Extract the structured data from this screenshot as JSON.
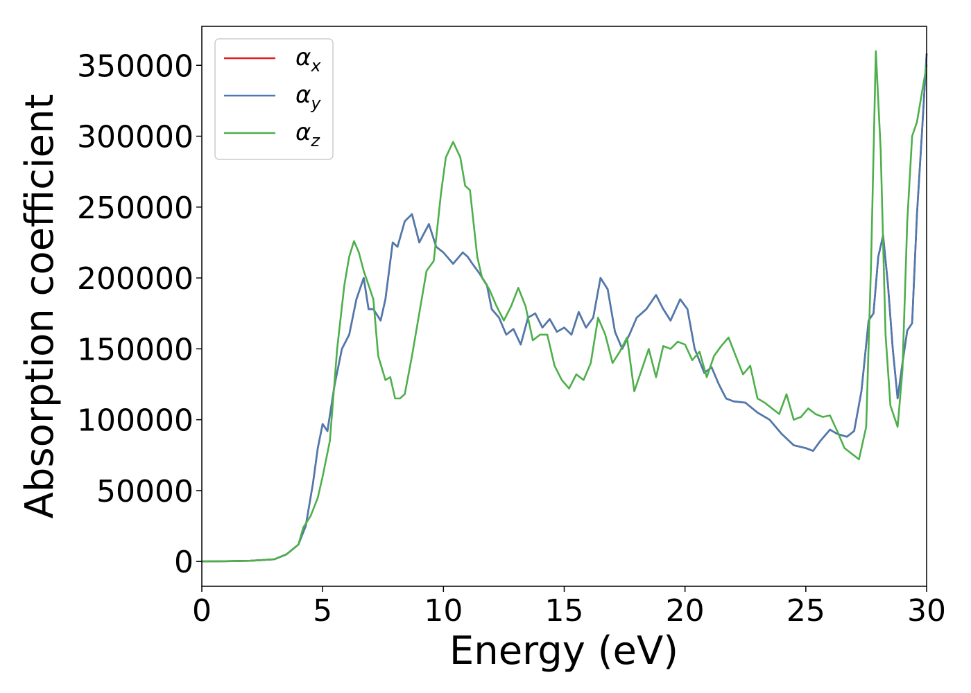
{
  "chart_data": {
    "type": "line",
    "xlabel": "Energy (eV)",
    "ylabel": "Absorption coefficient",
    "xlim": [
      0,
      30
    ],
    "ylim": [
      -17500,
      377500
    ],
    "xticks": [
      "0",
      "5",
      "10",
      "15",
      "20",
      "25",
      "30"
    ],
    "yticks": [
      "0",
      "50000",
      "100000",
      "150000",
      "200000",
      "250000",
      "300000",
      "350000"
    ],
    "grid": false,
    "legend_position": "top-left",
    "series": [
      {
        "name": "α_x",
        "symbol": "α",
        "subscript": "x",
        "color": "#e41a1c",
        "x": [
          0,
          1,
          2,
          3,
          3.5,
          4,
          4.3,
          4.6,
          4.8,
          5,
          5.2,
          5.5,
          5.8,
          6.1,
          6.4,
          6.7,
          6.9,
          7.1,
          7.4,
          7.6,
          7.9,
          8.1,
          8.4,
          8.7,
          9.0,
          9.4,
          9.7,
          10.0,
          10.4,
          10.8,
          11.0,
          11.2,
          11.5,
          11.8,
          12.0,
          12.3,
          12.6,
          12.9,
          13.2,
          13.5,
          13.8,
          14.1,
          14.4,
          14.7,
          15.0,
          15.3,
          15.6,
          15.9,
          16.2,
          16.5,
          16.8,
          17.1,
          17.4,
          17.7,
          18.0,
          18.4,
          18.8,
          19.1,
          19.4,
          19.8,
          20.1,
          20.4,
          20.8,
          21.1,
          21.4,
          21.7,
          22.0,
          22.5,
          23.0,
          23.5,
          24.0,
          24.5,
          25.0,
          25.3,
          25.6,
          26.0,
          26.3,
          26.7,
          27.0,
          27.3,
          27.6,
          27.8,
          28.0,
          28.2,
          28.4,
          28.6,
          28.8,
          29.0,
          29.2,
          29.4,
          29.6,
          29.8,
          30.0
        ],
        "y": [
          0,
          200,
          500,
          1500,
          5000,
          12000,
          25000,
          55000,
          80000,
          97000,
          92000,
          125000,
          150000,
          160000,
          185000,
          200000,
          178000,
          178000,
          170000,
          185000,
          225000,
          222000,
          240000,
          245000,
          225000,
          238000,
          222000,
          218000,
          210000,
          218000,
          215000,
          210000,
          203000,
          195000,
          178000,
          172000,
          160000,
          164000,
          153000,
          172000,
          175000,
          165000,
          171000,
          162000,
          165000,
          160000,
          176000,
          165000,
          172000,
          200000,
          192000,
          162000,
          150000,
          160000,
          172000,
          178000,
          188000,
          178000,
          170000,
          185000,
          178000,
          150000,
          133000,
          137000,
          125000,
          115000,
          113000,
          112000,
          105000,
          100000,
          90000,
          82000,
          80000,
          78000,
          85000,
          93000,
          90000,
          88000,
          92000,
          120000,
          170000,
          175000,
          215000,
          230000,
          195000,
          150000,
          115000,
          140000,
          163000,
          168000,
          245000,
          300000,
          358000
        ]
      },
      {
        "name": "α_y",
        "symbol": "α",
        "subscript": "y",
        "color": "#4a7bb0",
        "x": [
          0,
          1,
          2,
          3,
          3.5,
          4,
          4.3,
          4.6,
          4.8,
          5,
          5.2,
          5.5,
          5.8,
          6.1,
          6.4,
          6.7,
          6.9,
          7.1,
          7.4,
          7.6,
          7.9,
          8.1,
          8.4,
          8.7,
          9.0,
          9.4,
          9.7,
          10.0,
          10.4,
          10.8,
          11.0,
          11.2,
          11.5,
          11.8,
          12.0,
          12.3,
          12.6,
          12.9,
          13.2,
          13.5,
          13.8,
          14.1,
          14.4,
          14.7,
          15.0,
          15.3,
          15.6,
          15.9,
          16.2,
          16.5,
          16.8,
          17.1,
          17.4,
          17.7,
          18.0,
          18.4,
          18.8,
          19.1,
          19.4,
          19.8,
          20.1,
          20.4,
          20.8,
          21.1,
          21.4,
          21.7,
          22.0,
          22.5,
          23.0,
          23.5,
          24.0,
          24.5,
          25.0,
          25.3,
          25.6,
          26.0,
          26.3,
          26.7,
          27.0,
          27.3,
          27.6,
          27.8,
          28.0,
          28.2,
          28.4,
          28.6,
          28.8,
          29.0,
          29.2,
          29.4,
          29.6,
          29.8,
          30.0
        ],
        "y": [
          0,
          200,
          500,
          1500,
          5000,
          12000,
          25000,
          55000,
          80000,
          97000,
          92000,
          125000,
          150000,
          160000,
          185000,
          200000,
          178000,
          178000,
          170000,
          185000,
          225000,
          222000,
          240000,
          245000,
          225000,
          238000,
          222000,
          218000,
          210000,
          218000,
          215000,
          210000,
          203000,
          195000,
          178000,
          172000,
          160000,
          164000,
          153000,
          172000,
          175000,
          165000,
          171000,
          162000,
          165000,
          160000,
          176000,
          165000,
          172000,
          200000,
          192000,
          162000,
          150000,
          160000,
          172000,
          178000,
          188000,
          178000,
          170000,
          185000,
          178000,
          150000,
          133000,
          137000,
          125000,
          115000,
          113000,
          112000,
          105000,
          100000,
          90000,
          82000,
          80000,
          78000,
          85000,
          93000,
          90000,
          88000,
          92000,
          120000,
          170000,
          175000,
          215000,
          230000,
          195000,
          150000,
          115000,
          140000,
          163000,
          168000,
          245000,
          300000,
          358000
        ]
      },
      {
        "name": "α_z",
        "symbol": "α",
        "subscript": "z",
        "color": "#4daf4a",
        "x": [
          0,
          1,
          2,
          3,
          3.5,
          4,
          4.2,
          4.5,
          4.8,
          5,
          5.3,
          5.6,
          5.9,
          6.1,
          6.3,
          6.5,
          6.7,
          6.9,
          7.1,
          7.3,
          7.6,
          7.8,
          8.0,
          8.2,
          8.4,
          8.7,
          9.0,
          9.3,
          9.6,
          9.9,
          10.1,
          10.4,
          10.7,
          10.9,
          11.1,
          11.4,
          11.6,
          11.9,
          12.2,
          12.5,
          12.8,
          13.1,
          13.4,
          13.7,
          14.0,
          14.3,
          14.6,
          14.9,
          15.2,
          15.5,
          15.8,
          16.1,
          16.4,
          16.7,
          17.0,
          17.3,
          17.6,
          17.9,
          18.2,
          18.5,
          18.8,
          19.1,
          19.4,
          19.7,
          20.0,
          20.3,
          20.6,
          20.9,
          21.2,
          21.5,
          21.8,
          22.1,
          22.4,
          22.7,
          23.0,
          23.3,
          23.6,
          23.9,
          24.2,
          24.5,
          24.8,
          25.1,
          25.4,
          25.7,
          26.0,
          26.3,
          26.6,
          26.9,
          27.2,
          27.5,
          27.7,
          27.9,
          28.1,
          28.3,
          28.5,
          28.8,
          29.0,
          29.2,
          29.4,
          29.6,
          29.8,
          30.0
        ],
        "y": [
          0,
          200,
          500,
          1500,
          5000,
          12000,
          24000,
          32000,
          45000,
          60000,
          85000,
          150000,
          195000,
          215000,
          226000,
          218000,
          205000,
          195000,
          185000,
          145000,
          128000,
          130000,
          115000,
          115000,
          118000,
          145000,
          175000,
          205000,
          212000,
          260000,
          285000,
          296000,
          285000,
          265000,
          262000,
          215000,
          200000,
          192000,
          180000,
          170000,
          180000,
          193000,
          180000,
          156000,
          160000,
          160000,
          138000,
          128000,
          122000,
          132000,
          128000,
          140000,
          172000,
          160000,
          140000,
          148000,
          158000,
          120000,
          135000,
          150000,
          130000,
          152000,
          150000,
          155000,
          153000,
          142000,
          148000,
          130000,
          145000,
          152000,
          158000,
          145000,
          132000,
          138000,
          115000,
          112000,
          108000,
          104000,
          118000,
          100000,
          102000,
          108000,
          104000,
          102000,
          103000,
          92000,
          80000,
          76000,
          72000,
          95000,
          210000,
          360000,
          290000,
          160000,
          110000,
          95000,
          135000,
          240000,
          300000,
          310000,
          330000,
          350000
        ]
      }
    ]
  }
}
